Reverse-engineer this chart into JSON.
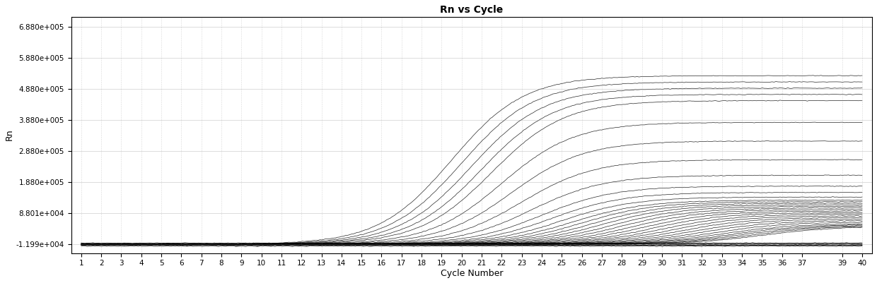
{
  "title": "Rn vs Cycle",
  "xlabel": "Cycle Number",
  "ylabel": "Rn",
  "yticks": [
    -11990,
    88010,
    188000,
    288000,
    388000,
    488000,
    588000,
    688000
  ],
  "ytick_labels": [
    "-1.199e+004",
    "8.801e+004",
    "1.880e+005",
    "2.880e+005",
    "3.880e+005",
    "4.880e+005",
    "5.880e+005",
    "6.880e+005"
  ],
  "ylim": [
    -40000,
    720000
  ],
  "xlim": [
    0.5,
    40.5
  ],
  "xticks": [
    1,
    2,
    3,
    4,
    5,
    6,
    7,
    8,
    9,
    10,
    11,
    12,
    13,
    14,
    15,
    16,
    17,
    18,
    19,
    20,
    21,
    22,
    23,
    24,
    25,
    26,
    27,
    28,
    29,
    30,
    31,
    32,
    33,
    34,
    35,
    36,
    37,
    39,
    40
  ],
  "n_flat_lines": 8,
  "baseline": -11990,
  "plateau_values": [
    530000,
    510000,
    490000,
    470000,
    450000,
    380000,
    320000,
    260000,
    210000,
    175000,
    155000,
    140000,
    130000,
    125000,
    120000,
    115000,
    110000,
    105000,
    100000,
    95000,
    90000,
    85000,
    80000,
    75000,
    70000,
    65000,
    60000,
    55000,
    52000,
    50000,
    48000,
    46000
  ],
  "midpoints": [
    19.5,
    20.0,
    20.5,
    21.0,
    21.5,
    22.0,
    22.5,
    23.0,
    23.5,
    24.0,
    24.5,
    25.0,
    25.5,
    26.0,
    26.5,
    27.0,
    27.5,
    28.0,
    28.5,
    29.0,
    29.5,
    30.0,
    30.5,
    31.0,
    31.5,
    32.0,
    32.5,
    33.0,
    33.5,
    34.0,
    34.5,
    35.0
  ],
  "line_color": "#000000",
  "background_color": "#ffffff",
  "plot_bg_color": "#ffffff",
  "grid_color": "#888888",
  "title_fontsize": 10,
  "axis_label_fontsize": 9,
  "tick_fontsize": 7.5
}
